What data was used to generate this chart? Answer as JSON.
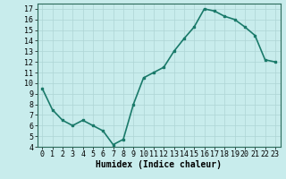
{
  "x": [
    0,
    1,
    2,
    3,
    4,
    5,
    6,
    7,
    8,
    9,
    10,
    11,
    12,
    13,
    14,
    15,
    16,
    17,
    18,
    19,
    20,
    21,
    22,
    23
  ],
  "y": [
    9.5,
    7.5,
    6.5,
    6.0,
    6.5,
    6.0,
    5.5,
    4.2,
    4.7,
    8.0,
    10.5,
    11.0,
    11.5,
    13.0,
    14.2,
    15.3,
    17.0,
    16.8,
    16.3,
    16.0,
    15.3,
    14.5,
    12.2,
    12.0
  ],
  "line_color": "#1a7a6a",
  "marker": "s",
  "marker_size": 2,
  "bg_color": "#c8ecec",
  "grid_color": "#aed4d4",
  "xlabel": "Humidex (Indice chaleur)",
  "xlabel_fontsize": 7,
  "xlim": [
    -0.5,
    23.5
  ],
  "ylim": [
    4,
    17.5
  ],
  "yticks": [
    4,
    5,
    6,
    7,
    8,
    9,
    10,
    11,
    12,
    13,
    14,
    15,
    16,
    17
  ],
  "xticks": [
    0,
    1,
    2,
    3,
    4,
    5,
    6,
    7,
    8,
    9,
    10,
    11,
    12,
    13,
    14,
    15,
    16,
    17,
    18,
    19,
    20,
    21,
    22,
    23
  ],
  "tick_fontsize": 6,
  "line_width": 1.2
}
